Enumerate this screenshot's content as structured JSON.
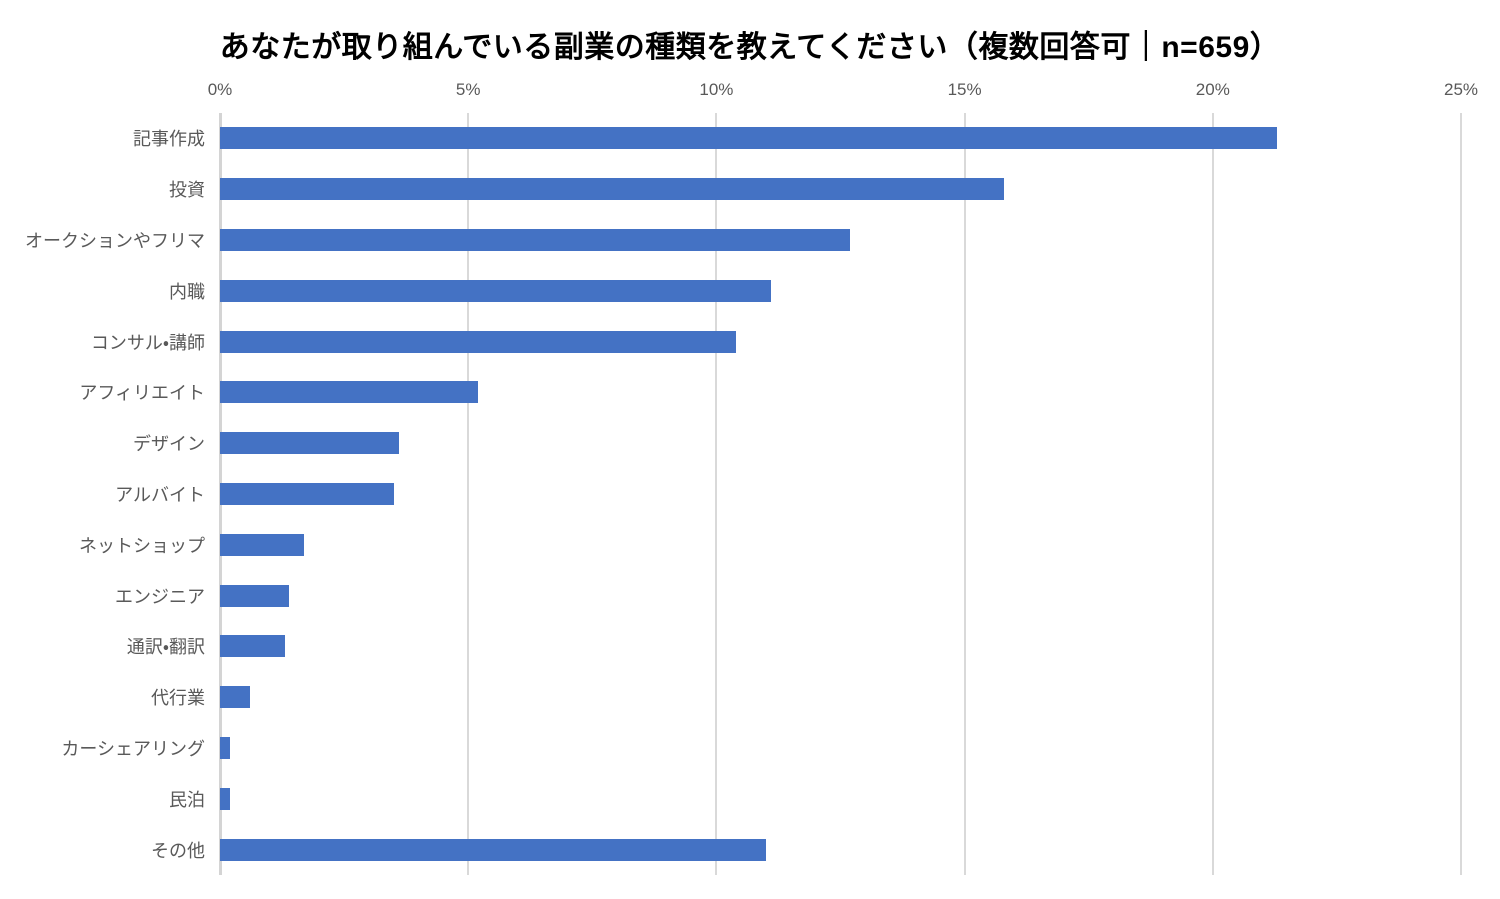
{
  "chart": {
    "title": "あなたが取り組んでいる副業の種類を教えてください（複数回答可｜n=659）"
  },
  "chart_data": {
    "type": "bar",
    "orientation": "horizontal",
    "title": "あなたが取り組んでいる副業の種類を教えてください（複数回答可｜n=659）",
    "sample_size_note": "n=659",
    "categories": [
      "記事作成",
      "投資",
      "オークションやフリマ",
      "内職",
      "コンサル・講師",
      "アフィリエイト",
      "デザイン",
      "アルバイト",
      "ネットショップ",
      "エンジニア",
      "通訳・翻訳",
      "代行業",
      "カーシェアリング",
      "民泊",
      "その他"
    ],
    "values": [
      21.3,
      15.8,
      12.7,
      11.1,
      10.4,
      5.2,
      3.6,
      3.5,
      1.7,
      1.4,
      1.3,
      0.6,
      0.2,
      0.2,
      11.0
    ],
    "value_unit": "%",
    "x_ticks": [
      "0%",
      "5%",
      "10%",
      "15%",
      "20%",
      "25%"
    ],
    "xlim": [
      0,
      25
    ],
    "xlabel": "",
    "ylabel": "",
    "grid": true,
    "legend": false,
    "axis_position": "top",
    "bar_color": "#4472C4",
    "gridline_color": "#D9D9D9",
    "label_color": "#595959",
    "title_color": "#000000"
  }
}
